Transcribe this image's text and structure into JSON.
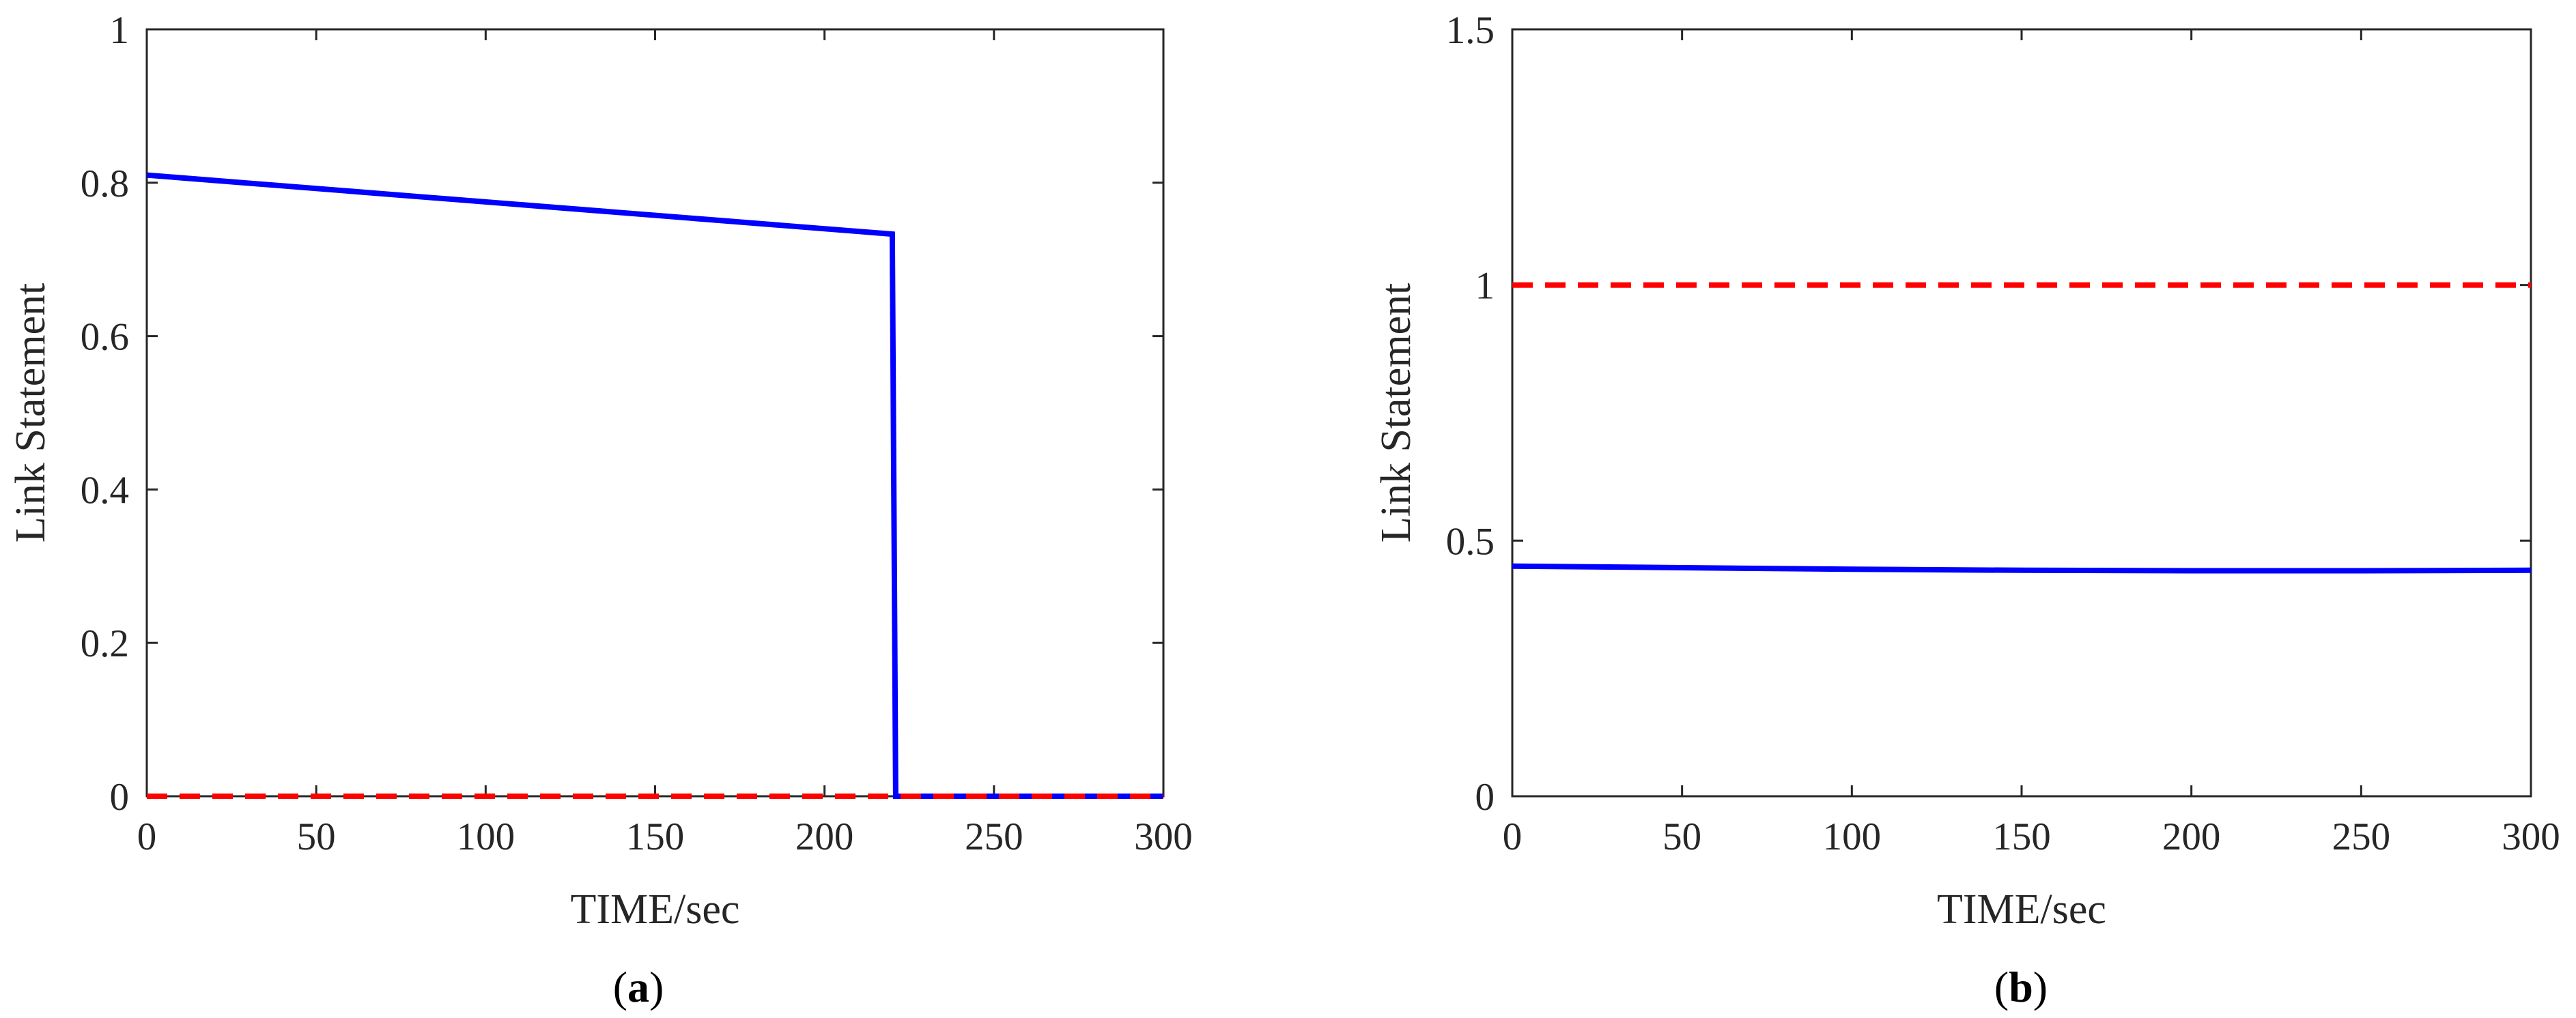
{
  "colors": {
    "solid_series": "#0000ff",
    "dashed_series": "#ff0000",
    "axes": "#262626"
  },
  "chart_data": [
    {
      "type": "line",
      "panel_label": "a",
      "xlabel": "TIME/sec",
      "ylabel": "Link Statement",
      "xlim": [
        0,
        300
      ],
      "ylim": [
        0,
        1
      ],
      "xticks": [
        0,
        50,
        100,
        150,
        200,
        250,
        300
      ],
      "yticks": [
        0,
        0.2,
        0.4,
        0.6,
        0.8,
        1
      ],
      "grid": false,
      "series": [
        {
          "color": "#0000ff",
          "style": "solid",
          "x": [
            0,
            220,
            220,
            221,
            300
          ],
          "y": [
            0.81,
            0.733,
            0.733,
            0,
            0
          ]
        },
        {
          "color": "#ff0000",
          "style": "dashed",
          "x": [
            0,
            300
          ],
          "y": [
            0,
            0
          ]
        }
      ]
    },
    {
      "type": "line",
      "panel_label": "b",
      "xlabel": "TIME/sec",
      "ylabel": "Link Statement",
      "xlim": [
        0,
        300
      ],
      "ylim": [
        0,
        1.5
      ],
      "xticks": [
        0,
        50,
        100,
        150,
        200,
        250,
        300
      ],
      "yticks": [
        0,
        0.5,
        1,
        1.5
      ],
      "grid": false,
      "series": [
        {
          "color": "#0000ff",
          "style": "solid",
          "x": [
            0,
            50,
            100,
            150,
            200,
            250,
            300
          ],
          "y": [
            0.45,
            0.447,
            0.444,
            0.442,
            0.441,
            0.441,
            0.442
          ]
        },
        {
          "color": "#ff0000",
          "style": "dashed",
          "x": [
            0,
            300
          ],
          "y": [
            1,
            1
          ]
        }
      ]
    }
  ]
}
